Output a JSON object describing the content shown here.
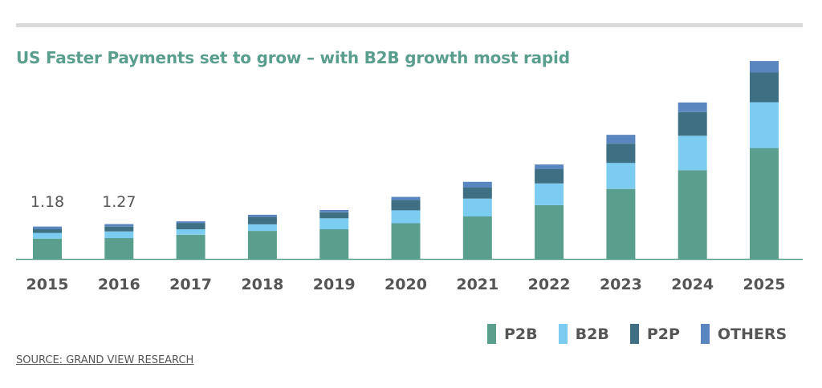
{
  "title": "US Faster Payments set to grow – with B2B growth most rapid",
  "source": "SOURCE: GRAND VIEW RESEARCH",
  "colors": {
    "P2B": "#5a9e8e",
    "B2B": "#7ccbf0",
    "P2P": "#3e6f82",
    "OTHERS": "#5a86c0",
    "axis": "#5a9e8e",
    "text": "#555555"
  },
  "chart_data": {
    "type": "bar",
    "stacked": true,
    "categories": [
      "2015",
      "2016",
      "2017",
      "2018",
      "2019",
      "2020",
      "2021",
      "2022",
      "2023",
      "2024",
      "2025"
    ],
    "series": [
      {
        "name": "P2B",
        "values": [
          0.74,
          0.76,
          0.88,
          1.02,
          1.08,
          1.3,
          1.55,
          1.96,
          2.55,
          3.23,
          4.04
        ]
      },
      {
        "name": "B2B",
        "values": [
          0.21,
          0.24,
          0.2,
          0.24,
          0.4,
          0.47,
          0.65,
          0.79,
          0.95,
          1.26,
          1.67
        ]
      },
      {
        "name": "P2P",
        "values": [
          0.13,
          0.17,
          0.22,
          0.27,
          0.22,
          0.38,
          0.4,
          0.52,
          0.7,
          0.86,
          1.08
        ]
      },
      {
        "name": "OTHERS",
        "values": [
          0.1,
          0.1,
          0.07,
          0.08,
          0.08,
          0.11,
          0.21,
          0.17,
          0.32,
          0.35,
          0.42
        ]
      }
    ],
    "data_labels": {
      "2015": "1.18",
      "2016": "1.27"
    },
    "legend_position": "bottom-right",
    "grid": false,
    "ylim": [
      0,
      7.3
    ]
  }
}
